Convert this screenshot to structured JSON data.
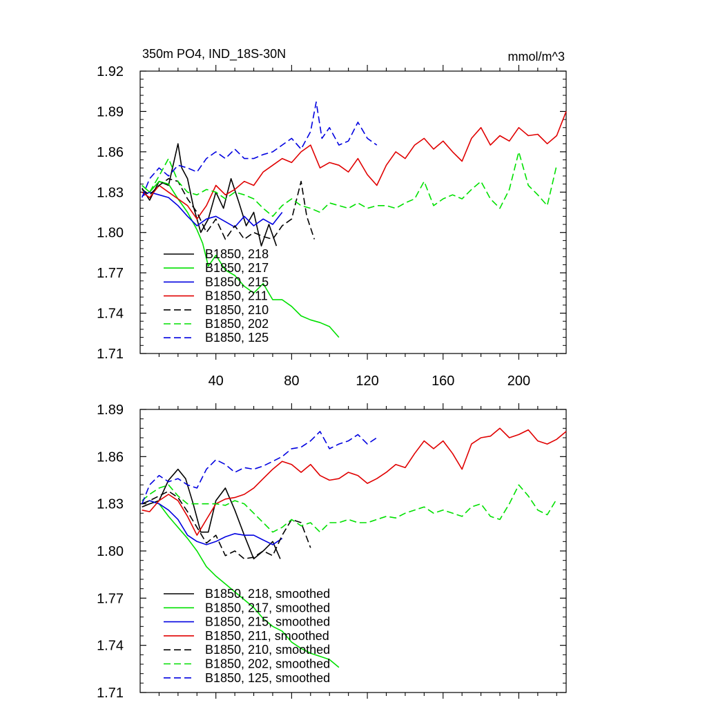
{
  "chart_data": [
    {
      "type": "line",
      "title": "350m PO4, IND_18S-30N",
      "units": "mmol/m^3",
      "xlabel": "",
      "ylabel": "",
      "xlim": [
        0,
        225
      ],
      "ylim": [
        1.71,
        1.92
      ],
      "yticks": [
        1.71,
        1.74,
        1.77,
        1.8,
        1.83,
        1.86,
        1.89,
        1.92
      ],
      "ytick_labels": [
        "1.71",
        "1.74",
        "1.77",
        "1.80",
        "1.83",
        "1.86",
        "1.89",
        "1.92"
      ],
      "xticks": [
        40,
        80,
        120,
        160,
        200
      ],
      "xtick_labels": [
        "40",
        "80",
        "120",
        "160",
        "200"
      ],
      "legend_position": "lower-left",
      "series": [
        {
          "name": "B1850, 218",
          "color": "#000000",
          "dash": "solid",
          "x": [
            1,
            5,
            10,
            15,
            20,
            22,
            25,
            28,
            32,
            36,
            40,
            44,
            48,
            52,
            56,
            60,
            64,
            68,
            72
          ],
          "y": [
            1.833,
            1.824,
            1.838,
            1.835,
            1.866,
            1.848,
            1.84,
            1.82,
            1.8,
            1.81,
            1.83,
            1.818,
            1.84,
            1.823,
            1.805,
            1.815,
            1.79,
            1.806,
            1.79
          ]
        },
        {
          "name": "B1850, 217",
          "color": "#00e000",
          "dash": "solid",
          "x": [
            1,
            5,
            10,
            15,
            20,
            25,
            30,
            33,
            36,
            40,
            45,
            50,
            55,
            60,
            65,
            70,
            75,
            80,
            85,
            90,
            95,
            100,
            105
          ],
          "y": [
            1.835,
            1.83,
            1.838,
            1.836,
            1.825,
            1.815,
            1.802,
            1.792,
            1.775,
            1.783,
            1.772,
            1.768,
            1.76,
            1.755,
            1.762,
            1.75,
            1.75,
            1.745,
            1.738,
            1.735,
            1.733,
            1.73,
            1.722
          ]
        },
        {
          "name": "B1850, 215",
          "color": "#0000e0",
          "dash": "solid",
          "x": [
            1,
            5,
            10,
            15,
            20,
            25,
            30,
            35,
            40,
            45,
            50,
            55,
            60,
            65,
            70,
            75
          ],
          "y": [
            1.827,
            1.83,
            1.828,
            1.826,
            1.82,
            1.812,
            1.805,
            1.81,
            1.812,
            1.808,
            1.804,
            1.812,
            1.805,
            1.81,
            1.806,
            1.815
          ]
        },
        {
          "name": "B1850, 211",
          "color": "#e00000",
          "dash": "solid",
          "x": [
            1,
            5,
            10,
            15,
            20,
            25,
            30,
            35,
            40,
            45,
            50,
            55,
            60,
            65,
            70,
            75,
            80,
            85,
            90,
            95,
            100,
            105,
            110,
            115,
            120,
            125,
            130,
            135,
            140,
            145,
            150,
            155,
            160,
            165,
            170,
            175,
            180,
            185,
            190,
            195,
            200,
            205,
            210,
            215,
            220,
            225
          ],
          "y": [
            1.83,
            1.826,
            1.835,
            1.83,
            1.825,
            1.82,
            1.81,
            1.82,
            1.835,
            1.828,
            1.832,
            1.838,
            1.835,
            1.845,
            1.85,
            1.855,
            1.852,
            1.86,
            1.865,
            1.848,
            1.852,
            1.85,
            1.845,
            1.855,
            1.843,
            1.835,
            1.85,
            1.86,
            1.855,
            1.865,
            1.87,
            1.862,
            1.868,
            1.86,
            1.853,
            1.87,
            1.878,
            1.865,
            1.872,
            1.868,
            1.878,
            1.872,
            1.873,
            1.866,
            1.872,
            1.89
          ]
        },
        {
          "name": "B1850, 210",
          "color": "#000000",
          "dash": "dashed",
          "x": [
            1,
            5,
            10,
            15,
            20,
            25,
            30,
            35,
            40,
            45,
            50,
            55,
            60,
            65,
            70,
            75,
            80,
            85,
            88,
            92
          ],
          "y": [
            1.832,
            1.828,
            1.835,
            1.84,
            1.838,
            1.825,
            1.815,
            1.8,
            1.81,
            1.795,
            1.805,
            1.795,
            1.8,
            1.797,
            1.795,
            1.805,
            1.81,
            1.838,
            1.812,
            1.795
          ]
        },
        {
          "name": "B1850, 202",
          "color": "#00e000",
          "dash": "dashed",
          "x": [
            1,
            5,
            10,
            15,
            20,
            25,
            30,
            35,
            40,
            45,
            50,
            55,
            60,
            65,
            70,
            75,
            80,
            85,
            90,
            95,
            100,
            105,
            110,
            115,
            120,
            125,
            130,
            135,
            140,
            145,
            150,
            155,
            160,
            165,
            170,
            175,
            180,
            185,
            190,
            195,
            200,
            205,
            210,
            215,
            220
          ],
          "y": [
            1.835,
            1.83,
            1.842,
            1.855,
            1.838,
            1.83,
            1.828,
            1.832,
            1.83,
            1.825,
            1.83,
            1.828,
            1.825,
            1.818,
            1.812,
            1.82,
            1.825,
            1.82,
            1.818,
            1.815,
            1.822,
            1.82,
            1.818,
            1.822,
            1.818,
            1.82,
            1.82,
            1.818,
            1.822,
            1.825,
            1.838,
            1.82,
            1.825,
            1.828,
            1.825,
            1.832,
            1.838,
            1.825,
            1.818,
            1.832,
            1.86,
            1.835,
            1.828,
            1.82,
            1.85
          ]
        },
        {
          "name": "B1850, 125",
          "color": "#0000e0",
          "dash": "dashed",
          "x": [
            1,
            5,
            10,
            15,
            20,
            25,
            30,
            35,
            40,
            45,
            50,
            55,
            60,
            65,
            70,
            75,
            80,
            85,
            90,
            93,
            96,
            100,
            105,
            110,
            115,
            120,
            125
          ],
          "y": [
            1.826,
            1.84,
            1.848,
            1.842,
            1.85,
            1.848,
            1.845,
            1.855,
            1.86,
            1.855,
            1.862,
            1.855,
            1.855,
            1.858,
            1.86,
            1.865,
            1.87,
            1.862,
            1.875,
            1.897,
            1.87,
            1.878,
            1.865,
            1.868,
            1.882,
            1.87,
            1.865
          ]
        }
      ]
    },
    {
      "type": "line",
      "title": "",
      "xlabel": "",
      "ylabel": "",
      "xlim": [
        0,
        225
      ],
      "ylim": [
        1.71,
        1.89
      ],
      "yticks": [
        1.71,
        1.74,
        1.77,
        1.8,
        1.83,
        1.86,
        1.89
      ],
      "ytick_labels": [
        "1.71",
        "1.74",
        "1.77",
        "1.80",
        "1.83",
        "1.86",
        "1.89"
      ],
      "legend_position": "lower-left",
      "series": [
        {
          "name": "B1850, 218, smoothed",
          "color": "#000000",
          "dash": "solid",
          "x": [
            1,
            5,
            10,
            15,
            20,
            24,
            28,
            32,
            36,
            40,
            45,
            50,
            55,
            60,
            65,
            70,
            74
          ],
          "y": [
            1.828,
            1.83,
            1.832,
            1.845,
            1.852,
            1.846,
            1.83,
            1.812,
            1.812,
            1.832,
            1.84,
            1.826,
            1.81,
            1.795,
            1.8,
            1.806,
            1.795
          ]
        },
        {
          "name": "B1850, 217, smoothed",
          "color": "#00e000",
          "dash": "solid",
          "x": [
            1,
            5,
            10,
            15,
            20,
            25,
            30,
            35,
            40,
            45,
            50,
            55,
            60,
            65,
            70,
            75,
            80,
            85,
            90,
            95,
            100,
            105
          ],
          "y": [
            1.83,
            1.832,
            1.83,
            1.822,
            1.815,
            1.808,
            1.8,
            1.79,
            1.784,
            1.779,
            1.774,
            1.769,
            1.764,
            1.757,
            1.752,
            1.749,
            1.742,
            1.738,
            1.735,
            1.733,
            1.731,
            1.726
          ]
        },
        {
          "name": "B1850, 215, smoothed",
          "color": "#0000e0",
          "dash": "solid",
          "x": [
            1,
            5,
            10,
            15,
            20,
            25,
            30,
            35,
            40,
            45,
            50,
            55,
            60,
            65,
            70,
            75
          ],
          "y": [
            1.83,
            1.832,
            1.83,
            1.826,
            1.82,
            1.81,
            1.806,
            1.804,
            1.806,
            1.809,
            1.811,
            1.81,
            1.81,
            1.807,
            1.804,
            1.808
          ]
        },
        {
          "name": "B1850, 211, smoothed",
          "color": "#e00000",
          "dash": "solid",
          "x": [
            1,
            5,
            10,
            15,
            20,
            25,
            30,
            35,
            40,
            45,
            50,
            55,
            60,
            65,
            70,
            75,
            80,
            85,
            90,
            95,
            100,
            105,
            110,
            115,
            120,
            125,
            130,
            135,
            140,
            145,
            150,
            155,
            160,
            165,
            170,
            175,
            180,
            185,
            190,
            195,
            200,
            205,
            210,
            215,
            220,
            225
          ],
          "y": [
            1.826,
            1.825,
            1.832,
            1.836,
            1.832,
            1.822,
            1.81,
            1.82,
            1.83,
            1.833,
            1.834,
            1.836,
            1.84,
            1.846,
            1.852,
            1.857,
            1.855,
            1.85,
            1.855,
            1.848,
            1.845,
            1.846,
            1.85,
            1.848,
            1.843,
            1.846,
            1.85,
            1.855,
            1.853,
            1.862,
            1.87,
            1.865,
            1.87,
            1.862,
            1.852,
            1.868,
            1.872,
            1.873,
            1.878,
            1.872,
            1.874,
            1.877,
            1.87,
            1.868,
            1.871,
            1.876
          ]
        },
        {
          "name": "B1850, 210, smoothed",
          "color": "#000000",
          "dash": "dashed",
          "x": [
            1,
            5,
            10,
            15,
            20,
            25,
            30,
            35,
            40,
            45,
            50,
            55,
            60,
            65,
            70,
            75,
            80,
            85,
            90
          ],
          "y": [
            1.83,
            1.832,
            1.835,
            1.838,
            1.834,
            1.825,
            1.815,
            1.805,
            1.81,
            1.797,
            1.8,
            1.795,
            1.796,
            1.8,
            1.797,
            1.81,
            1.82,
            1.818,
            1.802
          ]
        },
        {
          "name": "B1850, 202, smoothed",
          "color": "#00e000",
          "dash": "dashed",
          "x": [
            1,
            5,
            10,
            15,
            20,
            25,
            30,
            35,
            40,
            45,
            50,
            55,
            60,
            65,
            70,
            75,
            80,
            85,
            90,
            95,
            100,
            105,
            110,
            115,
            120,
            125,
            130,
            135,
            140,
            145,
            150,
            155,
            160,
            165,
            170,
            175,
            180,
            185,
            190,
            195,
            200,
            205,
            210,
            215,
            220
          ],
          "y": [
            1.832,
            1.836,
            1.84,
            1.842,
            1.835,
            1.83,
            1.83,
            1.83,
            1.83,
            1.829,
            1.832,
            1.83,
            1.824,
            1.818,
            1.812,
            1.815,
            1.82,
            1.816,
            1.818,
            1.812,
            1.818,
            1.818,
            1.82,
            1.818,
            1.818,
            1.82,
            1.822,
            1.821,
            1.824,
            1.826,
            1.828,
            1.824,
            1.826,
            1.824,
            1.822,
            1.828,
            1.83,
            1.822,
            1.82,
            1.83,
            1.842,
            1.835,
            1.826,
            1.823,
            1.833
          ]
        },
        {
          "name": "B1850, 125, smoothed",
          "color": "#0000e0",
          "dash": "dashed",
          "x": [
            1,
            5,
            10,
            15,
            20,
            25,
            30,
            35,
            40,
            45,
            50,
            55,
            60,
            65,
            70,
            75,
            80,
            85,
            90,
            95,
            100,
            105,
            110,
            115,
            120,
            125
          ],
          "y": [
            1.83,
            1.842,
            1.848,
            1.844,
            1.846,
            1.842,
            1.84,
            1.852,
            1.858,
            1.855,
            1.85,
            1.853,
            1.852,
            1.854,
            1.857,
            1.86,
            1.865,
            1.866,
            1.87,
            1.876,
            1.865,
            1.868,
            1.87,
            1.874,
            1.868,
            1.872
          ]
        }
      ]
    }
  ]
}
